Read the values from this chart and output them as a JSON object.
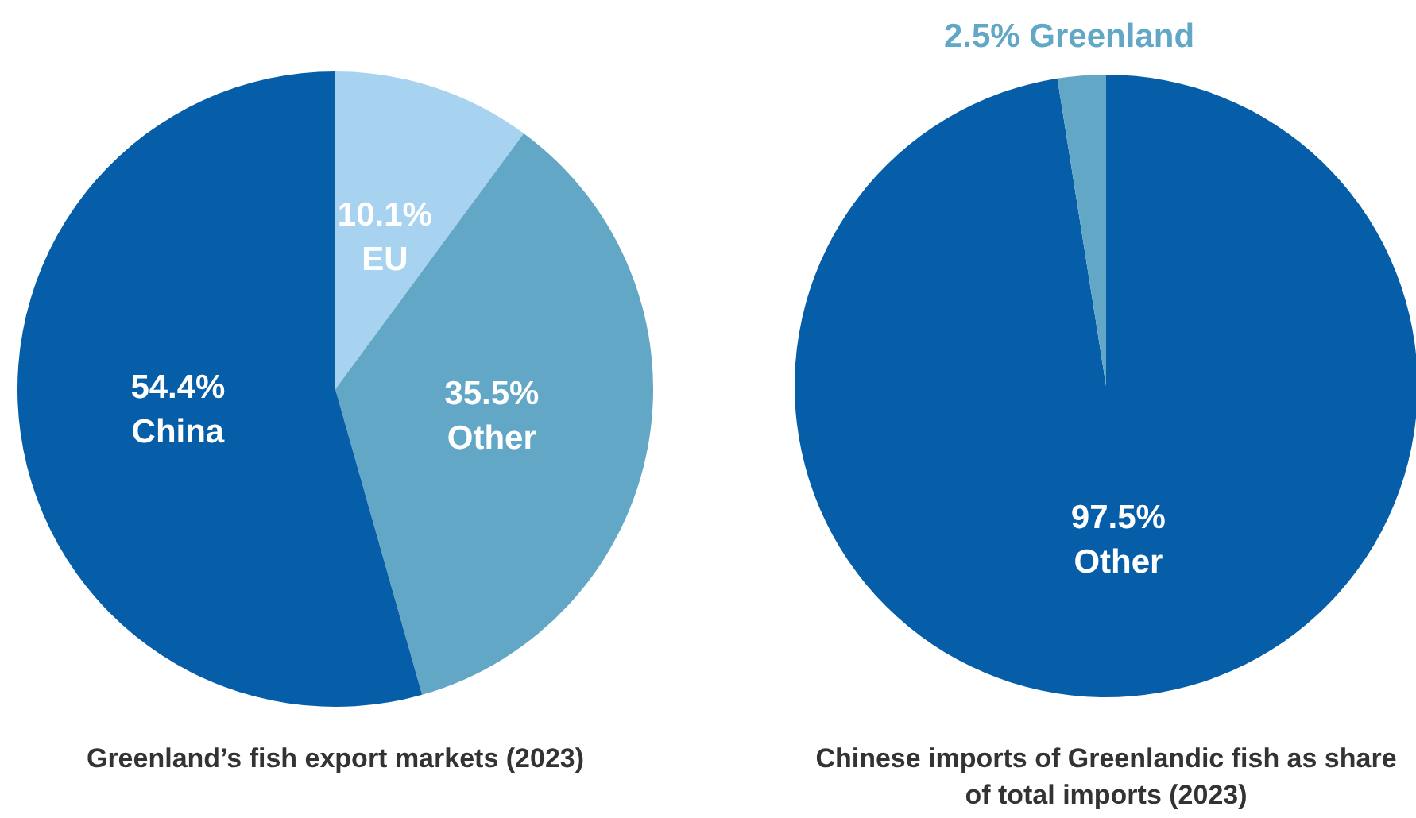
{
  "chart_data": [
    {
      "type": "pie",
      "title": "Greenland’s fish export markets (2023)",
      "categories": [
        "EU",
        "Other",
        "China"
      ],
      "values": [
        10.1,
        35.5,
        54.4
      ],
      "value_labels": [
        "10.1%",
        "35.5%",
        "54.4%"
      ],
      "colors": [
        "#a8d3f0",
        "#62a7c6",
        "#065ea8"
      ],
      "legend": false
    },
    {
      "type": "pie",
      "title": "Chinese imports of Greenlandic fish as share of total imports (2023)",
      "categories": [
        "Other",
        "Greenland"
      ],
      "values": [
        97.5,
        2.5
      ],
      "value_labels": [
        "97.5%",
        "2.5%"
      ],
      "colors": [
        "#065ea8",
        "#62a7c6"
      ],
      "legend": false
    }
  ]
}
